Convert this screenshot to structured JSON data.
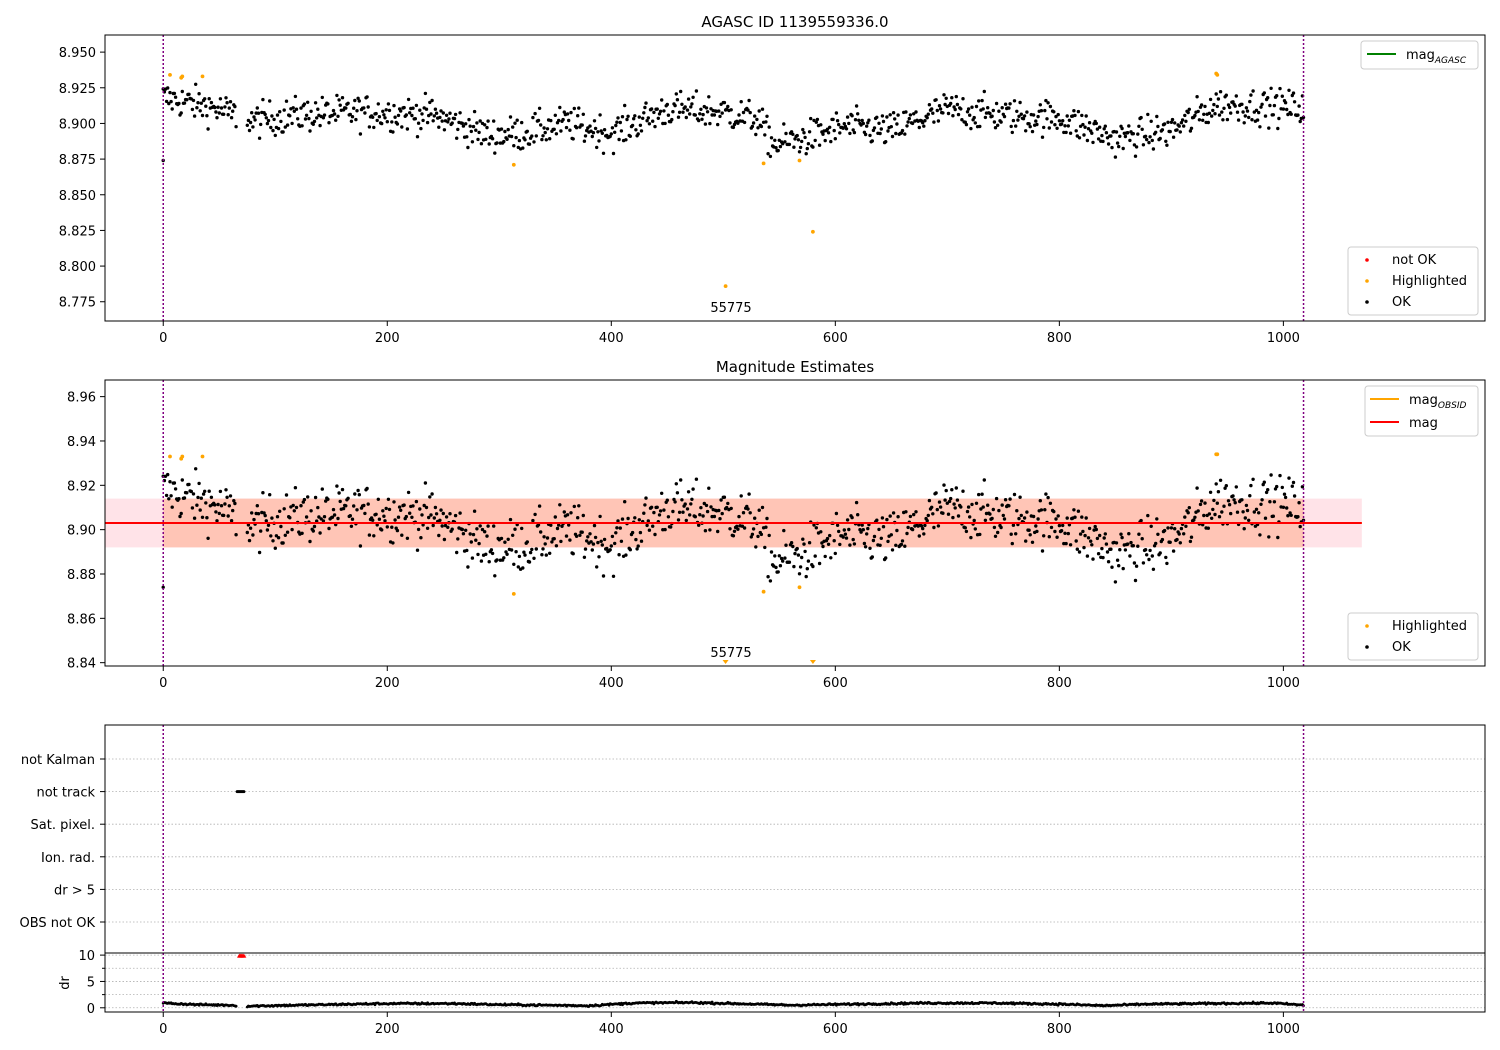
{
  "figure": {
    "colors": {
      "ok": "#000000",
      "highlighted": "#ffa500",
      "not_ok": "#ff0000",
      "agasc_line": "#008000",
      "obsid_line": "#ffa500",
      "mag_line": "#ff0000",
      "band_outer": "#ffc0cb",
      "band_inner": "#ffa07a",
      "boundary": "#800080"
    }
  },
  "chart_data": [
    {
      "id": "agasc",
      "type": "scatter",
      "title": "AGASC ID 1139559336.0",
      "xlim": [
        -52,
        1180
      ],
      "ylim": [
        8.7615,
        8.962
      ],
      "xticks": [
        0,
        200,
        400,
        600,
        800,
        1000
      ],
      "yticks": [
        "8.775",
        "8.800",
        "8.825",
        "8.850",
        "8.875",
        "8.900",
        "8.925",
        "8.950"
      ],
      "obs_boundaries": [
        0,
        1018
      ],
      "obsid_label": {
        "text": "55775",
        "x": 509
      },
      "highlighted_points": [
        [
          6,
          8.934
        ],
        [
          16,
          8.932
        ],
        [
          17,
          8.933
        ],
        [
          35,
          8.933
        ],
        [
          313,
          8.871
        ],
        [
          502,
          8.786
        ],
        [
          536,
          8.872
        ],
        [
          568,
          8.874
        ],
        [
          580,
          8.824
        ],
        [
          940,
          8.935
        ],
        [
          941,
          8.934
        ]
      ],
      "ok_trend": [
        [
          0,
          8.918
        ],
        [
          40,
          8.912
        ],
        [
          80,
          8.902
        ],
        [
          120,
          8.906
        ],
        [
          180,
          8.908
        ],
        [
          240,
          8.906
        ],
        [
          290,
          8.892
        ],
        [
          320,
          8.893
        ],
        [
          360,
          8.9
        ],
        [
          400,
          8.893
        ],
        [
          450,
          8.91
        ],
        [
          500,
          8.908
        ],
        [
          530,
          8.903
        ],
        [
          545,
          8.885
        ],
        [
          575,
          8.89
        ],
        [
          610,
          8.898
        ],
        [
          650,
          8.895
        ],
        [
          700,
          8.91
        ],
        [
          760,
          8.905
        ],
        [
          800,
          8.904
        ],
        [
          850,
          8.889
        ],
        [
          900,
          8.895
        ],
        [
          940,
          8.913
        ],
        [
          1018,
          8.911
        ]
      ],
      "legend_top": [
        {
          "label": "mag",
          "sub": "AGASC",
          "kind": "line",
          "color": "#008000"
        }
      ],
      "legend_bottom": [
        {
          "label": "not OK",
          "kind": "point",
          "color": "#ff0000"
        },
        {
          "label": "Highlighted",
          "kind": "point",
          "color": "#ffa500"
        },
        {
          "label": "OK",
          "kind": "point",
          "color": "#000000"
        }
      ]
    },
    {
      "id": "estimates",
      "type": "scatter",
      "title": "Magnitude Estimates",
      "xlim": [
        -52,
        1180
      ],
      "ylim": [
        8.8385,
        8.9675
      ],
      "xticks": [
        0,
        200,
        400,
        600,
        800,
        1000
      ],
      "yticks": [
        "8.84",
        "8.86",
        "8.88",
        "8.90",
        "8.92",
        "8.94",
        "8.96"
      ],
      "obs_boundaries": [
        0,
        1018
      ],
      "obsid_label": {
        "text": "55775",
        "x": 509
      },
      "mag_line": 8.903,
      "mag_band": {
        "x": [
          -52,
          1070
        ],
        "y": [
          8.892,
          8.914
        ]
      },
      "obsid_band": {
        "x": [
          0,
          1018
        ],
        "y": [
          8.892,
          8.914
        ]
      },
      "highlighted_points": [
        [
          6,
          8.933
        ],
        [
          16,
          8.932
        ],
        [
          17,
          8.933
        ],
        [
          35,
          8.933
        ],
        [
          313,
          8.871
        ],
        [
          536,
          8.872
        ],
        [
          568,
          8.874
        ],
        [
          940,
          8.934
        ],
        [
          941,
          8.934
        ]
      ],
      "offscale_markers": [
        502,
        580
      ],
      "legend_top": [
        {
          "label": "mag",
          "sub": "OBSID",
          "kind": "line",
          "color": "#ffa500"
        },
        {
          "label": "mag",
          "kind": "line",
          "color": "#ff0000"
        }
      ],
      "legend_bottom": [
        {
          "label": "Highlighted",
          "kind": "point",
          "color": "#ffa500"
        },
        {
          "label": "OK",
          "kind": "point",
          "color": "#000000"
        }
      ]
    },
    {
      "id": "flags",
      "type": "scatter",
      "xlim": [
        -52,
        1180
      ],
      "categories": [
        "not Kalman",
        "not track",
        "Sat. pixel.",
        "Ion. rad.",
        "dr > 5",
        "OBS not OK"
      ],
      "obs_boundaries": [
        0,
        1018
      ],
      "flag_points": [
        {
          "category": "not track",
          "x": [
            66,
            67,
            68,
            69,
            70,
            71,
            72
          ]
        }
      ]
    },
    {
      "id": "dr",
      "type": "line",
      "ylabel": "dr",
      "xlim": [
        -52,
        1180
      ],
      "ylim": [
        -0.8,
        10.4
      ],
      "xticks": [
        0,
        200,
        400,
        600,
        800,
        1000
      ],
      "yticks": [
        "0",
        "5",
        "10"
      ],
      "obs_boundaries": [
        0,
        1018
      ],
      "dr_trend": [
        [
          0,
          0.9
        ],
        [
          30,
          0.6
        ],
        [
          60,
          0.5
        ],
        [
          70,
          0.3
        ],
        [
          120,
          0.5
        ],
        [
          200,
          0.8
        ],
        [
          260,
          0.8
        ],
        [
          300,
          0.6
        ],
        [
          340,
          0.5
        ],
        [
          380,
          0.4
        ],
        [
          420,
          0.9
        ],
        [
          470,
          1.0
        ],
        [
          510,
          0.8
        ],
        [
          560,
          0.5
        ],
        [
          620,
          0.7
        ],
        [
          680,
          0.9
        ],
        [
          740,
          0.9
        ],
        [
          800,
          0.7
        ],
        [
          840,
          0.4
        ],
        [
          880,
          0.7
        ],
        [
          930,
          0.8
        ],
        [
          990,
          0.9
        ],
        [
          1018,
          0.5
        ]
      ],
      "clipped_points": [
        68,
        69,
        70,
        71,
        72
      ]
    }
  ]
}
